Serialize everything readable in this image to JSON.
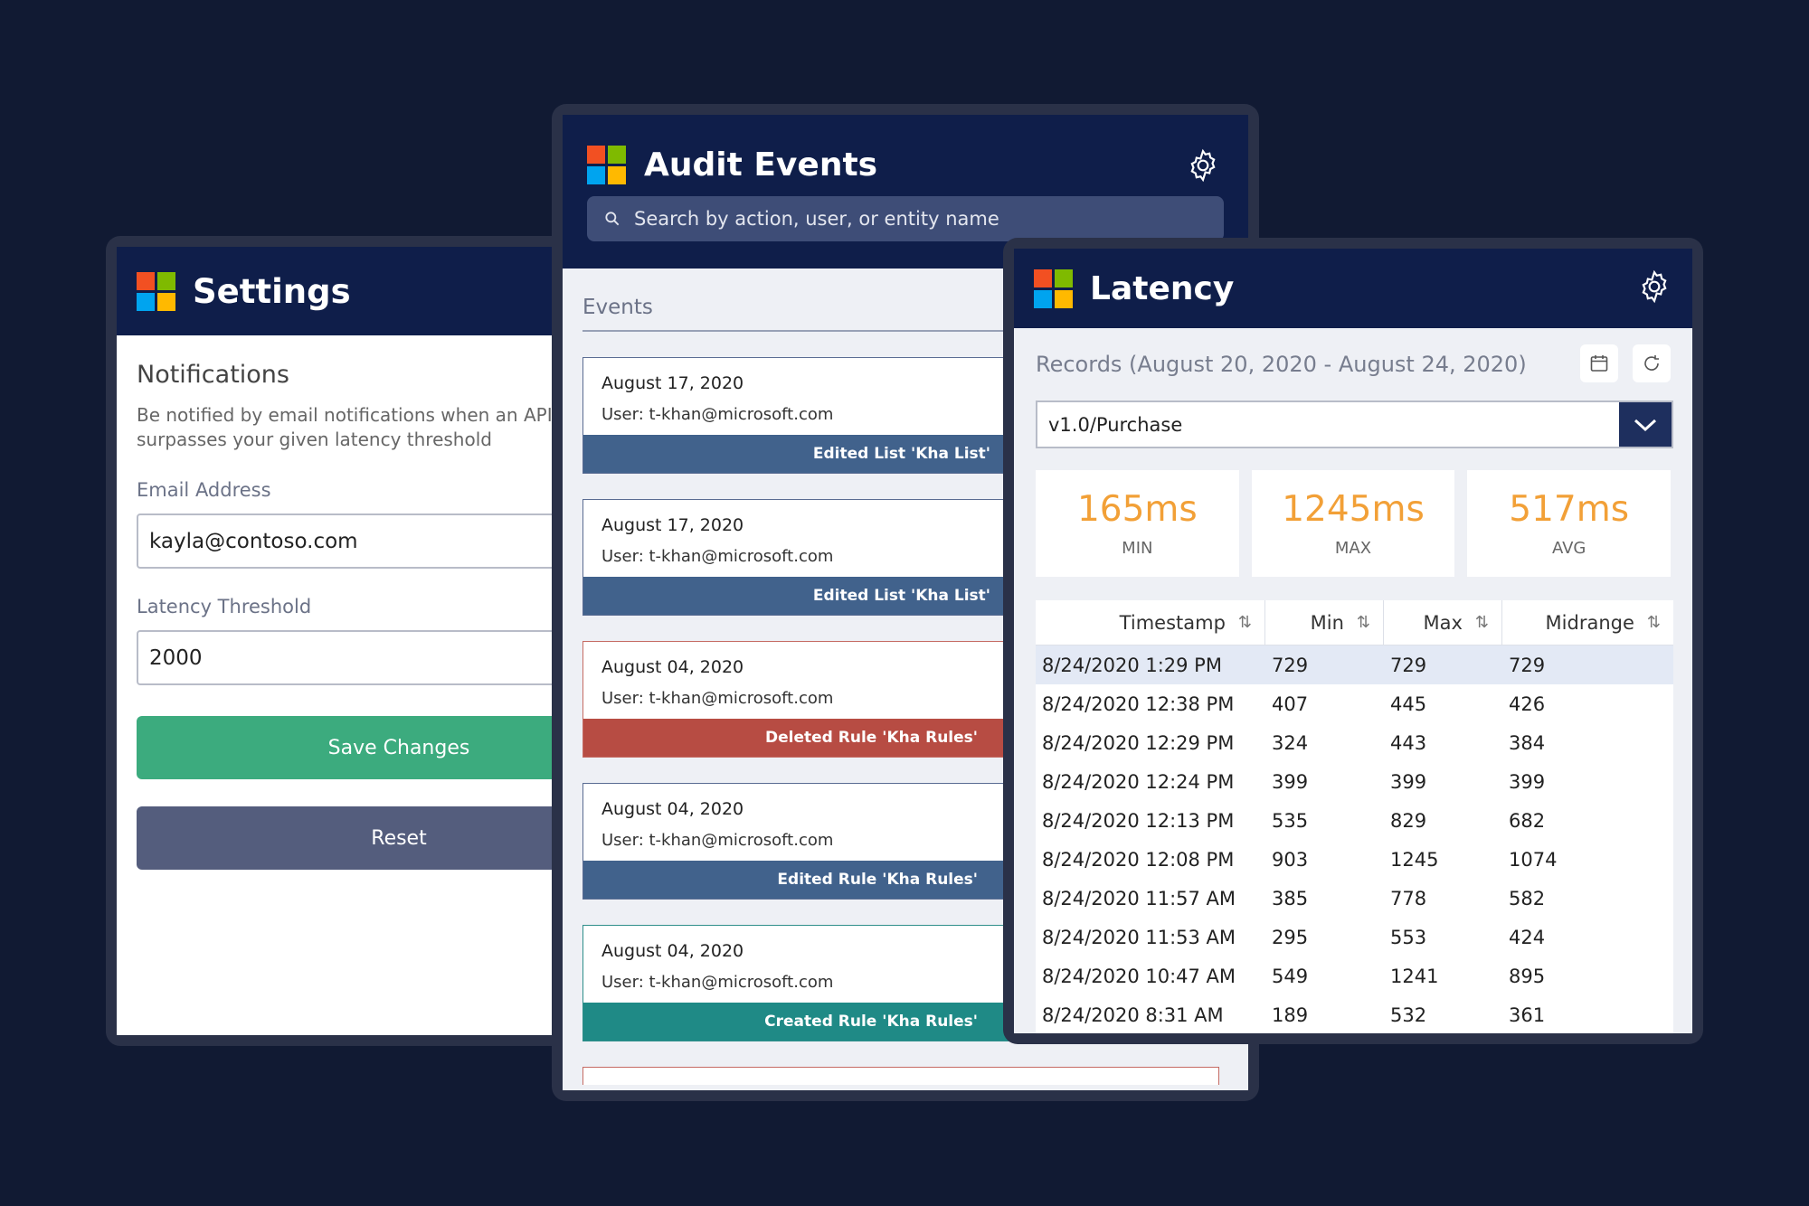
{
  "settings": {
    "title": "Settings",
    "notifications_heading": "Notifications",
    "notifications_desc_line1": "Be notified by email notifications when an API c",
    "notifications_desc_line2": "surpasses your given latency threshold",
    "email_label": "Email Address",
    "email_value": "kayla@contoso.com",
    "threshold_label": "Latency Threshold",
    "threshold_value": "2000",
    "save_label": "Save Changes",
    "reset_label": "Reset"
  },
  "audit": {
    "title": "Audit Events",
    "search_placeholder": "Search by action, user, or entity name",
    "events_heading": "Events",
    "events": [
      {
        "date": "August 17, 2020",
        "user": "User: t-khan@microsoft.com",
        "action": "Edited List 'Kha List'",
        "kind": "edit"
      },
      {
        "date": "August 17, 2020",
        "user": "User: t-khan@microsoft.com",
        "action": "Edited List 'Kha List'",
        "kind": "edit"
      },
      {
        "date": "August 04, 2020",
        "user": "User: t-khan@microsoft.com",
        "action": "Deleted Rule 'Kha Rules'",
        "kind": "delete"
      },
      {
        "date": "August 04, 2020",
        "user": "User: t-khan@microsoft.com",
        "action": "Edited Rule 'Kha Rules'",
        "kind": "edit"
      },
      {
        "date": "August 04, 2020",
        "user": "User: t-khan@microsoft.com",
        "action": "Created Rule 'Kha Rules'",
        "kind": "create"
      }
    ]
  },
  "latency": {
    "title": "Latency",
    "records_label": "Records (August 20, 2020 - August 24, 2020)",
    "endpoint_value": "v1.0/Purchase",
    "stats": [
      {
        "value": "165ms",
        "label": "MIN"
      },
      {
        "value": "1245ms",
        "label": "MAX"
      },
      {
        "value": "517ms",
        "label": "AVG"
      }
    ],
    "columns": [
      "Timestamp",
      "Min",
      "Max",
      "Midrange"
    ],
    "rows": [
      [
        "8/24/2020 1:29 PM",
        "729",
        "729",
        "729"
      ],
      [
        "8/24/2020 12:38 PM",
        "407",
        "445",
        "426"
      ],
      [
        "8/24/2020 12:29 PM",
        "324",
        "443",
        "384"
      ],
      [
        "8/24/2020 12:24 PM",
        "399",
        "399",
        "399"
      ],
      [
        "8/24/2020 12:13 PM",
        "535",
        "829",
        "682"
      ],
      [
        "8/24/2020 12:08 PM",
        "903",
        "1245",
        "1074"
      ],
      [
        "8/24/2020 11:57 AM",
        "385",
        "778",
        "582"
      ],
      [
        "8/24/2020 11:53 AM",
        "295",
        "553",
        "424"
      ],
      [
        "8/24/2020 10:47 AM",
        "549",
        "1241",
        "895"
      ],
      [
        "8/24/2020 8:31 AM",
        "189",
        "532",
        "361"
      ]
    ]
  },
  "colors": {
    "background": "#111a33",
    "header": "#0f1e4a",
    "accent_orange": "#f2a037",
    "save_green": "#3cab7e",
    "reset_slate": "#545d7d",
    "edit_blue": "#41628c",
    "delete_red": "#b74c43",
    "create_teal": "#1f8a86"
  }
}
